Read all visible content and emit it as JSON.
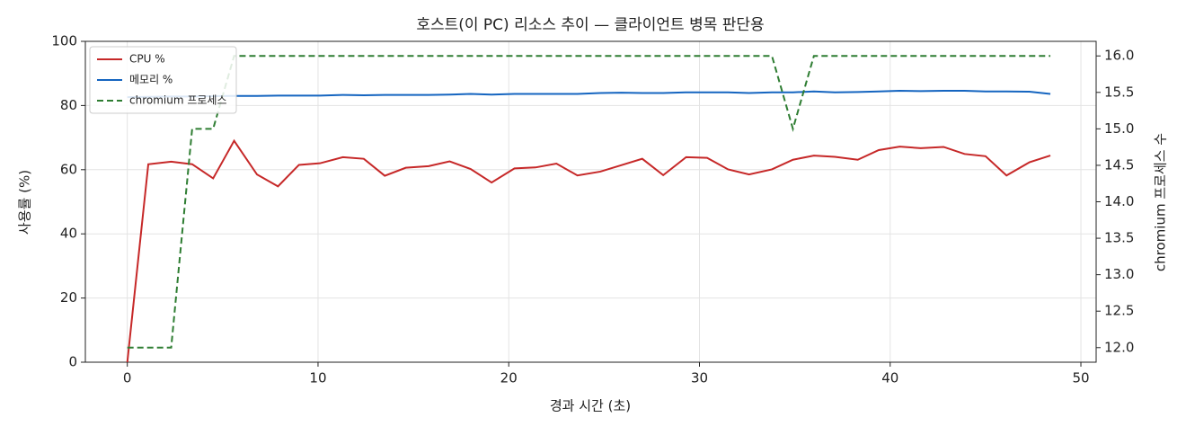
{
  "chart_data": {
    "type": "line",
    "title": "호스트(이 PC) 리소스 추이 — 클라이언트 병목 판단용",
    "x_label": "경과 시간 (초)",
    "y_label": "사용률 (%)",
    "y2_label": "chromium 프로세스 수",
    "x": [
      0,
      1.1,
      2.3,
      3.4,
      4.5,
      5.6,
      6.8,
      7.9,
      9.0,
      10.1,
      11.3,
      12.4,
      13.5,
      14.6,
      15.8,
      16.9,
      18.0,
      19.1,
      20.3,
      21.4,
      22.5,
      23.6,
      24.8,
      25.9,
      27.0,
      28.1,
      29.3,
      30.4,
      31.5,
      32.6,
      33.8,
      34.9,
      36.0,
      37.1,
      38.3,
      39.4,
      40.5,
      41.6,
      42.8,
      43.9,
      45.0,
      46.1,
      47.3,
      48.4
    ],
    "series": [
      {
        "name": "CPU %",
        "color": "#c62828",
        "style": "solid",
        "values": [
          0,
          61.7,
          62.5,
          61.7,
          57.3,
          69,
          58.5,
          54.8,
          61.5,
          62,
          63.9,
          63.4,
          58.1,
          60.6,
          61.1,
          62.6,
          60.2,
          56,
          60.4,
          60.7,
          61.9,
          58.2,
          59.4,
          61.4,
          63.4,
          58.3,
          63.9,
          63.7,
          60.1,
          58.5,
          60.1,
          63.1,
          64.4,
          64,
          63.1,
          66.1,
          67.2,
          66.7,
          67.1,
          64.9,
          64.2,
          58.2,
          62.3,
          64.4
        ]
      },
      {
        "name": "메모리 %",
        "color": "#1565c0",
        "style": "solid",
        "values": [
          82.6,
          82.7,
          82.8,
          82.8,
          82.9,
          83,
          83,
          83.1,
          83.1,
          83.1,
          83.3,
          83.2,
          83.3,
          83.3,
          83.3,
          83.4,
          83.6,
          83.4,
          83.6,
          83.6,
          83.6,
          83.6,
          83.9,
          84,
          83.9,
          83.9,
          84.1,
          84.1,
          84.1,
          83.9,
          84.1,
          84.1,
          84.4,
          84.1,
          84.2,
          84.4,
          84.6,
          84.5,
          84.6,
          84.6,
          84.4,
          84.4,
          84.3,
          83.6
        ]
      },
      {
        "name": "chromium 프로세스",
        "color": "#2e7d32",
        "style": "dashed",
        "axis": "y2",
        "values": [
          12,
          12,
          12,
          15,
          15,
          16,
          16,
          16,
          16,
          16,
          16,
          16,
          16,
          16,
          16,
          16,
          16,
          16,
          16,
          16,
          16,
          16,
          16,
          16,
          16,
          16,
          16,
          16,
          16,
          16,
          16,
          15,
          16,
          16,
          16,
          16,
          16,
          16,
          16,
          16,
          16,
          16,
          16,
          16
        ]
      }
    ],
    "xlim": [
      -2.2,
      50.8
    ],
    "xticks": [
      0,
      10,
      20,
      30,
      40,
      50
    ],
    "ylim": [
      0,
      100
    ],
    "yticks": [
      0,
      20,
      40,
      60,
      80,
      100
    ],
    "y2lim": [
      11.8,
      16.2
    ],
    "y2ticks": [
      {
        "value": 12,
        "label": "12.0"
      },
      12.5,
      {
        "value": 13,
        "label": "13.0"
      },
      13.5,
      {
        "value": 14,
        "label": "14.0"
      },
      14.5,
      {
        "value": 15,
        "label": "15.0"
      },
      15.5,
      {
        "value": 16,
        "label": "16.0"
      }
    ],
    "grid": true,
    "legend": "upper left"
  }
}
